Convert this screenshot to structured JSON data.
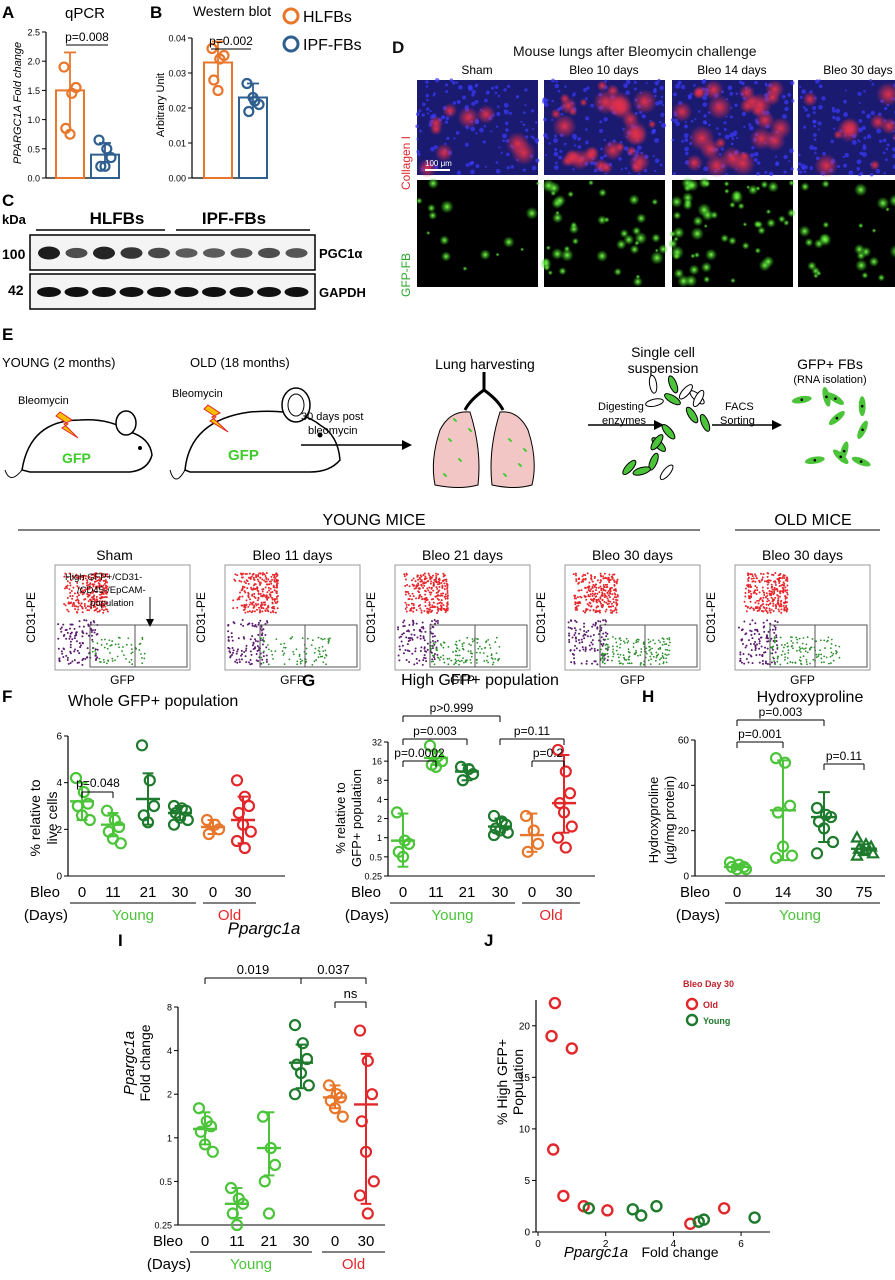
{
  "colors": {
    "orange": "#E8772B",
    "blue": "#2F5F8F",
    "lgreen": "#4CC43A",
    "dgreen": "#1E7A2C",
    "red": "#E2272B",
    "ntitle": "#111"
  },
  "panelA": {
    "letter": "A",
    "title": "qPCR",
    "ylabel": "PPARGC1A Fold change",
    "yticks": [
      "0.0",
      "0.5",
      "1.0",
      "1.5",
      "2.0",
      "2.5"
    ],
    "pval": "p=0.008"
  },
  "panelB": {
    "letter": "B",
    "title": "Western blot",
    "ylabel": "Arbitrary Unit",
    "yticks": [
      "0.00",
      "0.01",
      "0.02",
      "0.03",
      "0.04"
    ],
    "pval": "p=0.002",
    "legend": [
      "HLFBs",
      "IPF-FBs"
    ]
  },
  "panelC": {
    "letter": "C",
    "kda": "kDa",
    "groups": [
      "HLFBs",
      "IPF-FBs"
    ],
    "m1": "100",
    "m2": "42",
    "band1": "PGC1α",
    "band2": "GAPDH"
  },
  "panelD": {
    "letter": "D",
    "title": "Mouse lungs after Bleomycin challenge",
    "cols": [
      "Sham",
      "Bleo 10 days",
      "Bleo 14 days",
      "Bleo 30 days"
    ],
    "row1": "Collagen I",
    "row2": "GFP-FB",
    "scale": "100 μm"
  },
  "panelE": {
    "letter": "E",
    "young": "YOUNG (2 months)",
    "old": "OLD (18 months)",
    "bleo": "Bleomycin",
    "gfp": "GFP",
    "step1": "30 days post",
    "step1b": "bleomycin",
    "harvest": "Lung harvesting",
    "single": "Single cell",
    "suspension": "suspension",
    "digest1": "Digesting",
    "digest2": "enzymes",
    "facs1": "FACS",
    "facs2": "Sorting",
    "gfpfb": "GFP+ FBs",
    "rna": "(RNA isolation)",
    "youngMice": "YOUNG MICE",
    "oldMice": "OLD MICE",
    "flowTitles": [
      "Sham",
      "Bleo 11 days",
      "Bleo 21 days",
      "Bleo 30 days",
      "Bleo 30 days"
    ],
    "flowY": "CD31-PE",
    "flowX": "GFP",
    "gate1": "High GFP+/CD31-",
    "gate2": "/CD45-/EpCAM-",
    "gate3": "population"
  },
  "panelF": {
    "letter": "F",
    "title": "Whole GFP+ population",
    "ylabel1": "% relative to",
    "ylabel2": "live cells",
    "yticks": [
      "0",
      "2",
      "4",
      "6"
    ],
    "pval": "p=0.048",
    "xt": [
      "0",
      "11",
      "21",
      "30",
      "0",
      "30"
    ]
  },
  "panelG": {
    "letter": "G",
    "title": "High GFP+ population",
    "ylabel1": "% relative to",
    "ylabel2": "GFP+ population",
    "yticks": [
      "0.25",
      "0.5",
      "1",
      "2",
      "4",
      "8",
      "16",
      "32"
    ],
    "pvals": [
      "p>0.999",
      "p=0.003",
      "p=0.0002",
      "p=0.11",
      "p=0.2"
    ],
    "xt": [
      "0",
      "11",
      "21",
      "30",
      "0",
      "30"
    ]
  },
  "panelH": {
    "letter": "H",
    "title": "Hydroxyproline",
    "ylabel1": "Hydroxyproline",
    "ylabel2": "(μg/mg protein)",
    "yticks": [
      "0",
      "20",
      "40",
      "60"
    ],
    "pvals": [
      "p=0.003",
      "p=0.001",
      "p=0.11"
    ],
    "xt": [
      "0",
      "14",
      "30",
      "75"
    ]
  },
  "panelI": {
    "letter": "I",
    "title": "Ppargc1a",
    "ylabel1": "Ppargc1a",
    "ylabel2": "Fold change",
    "yticks": [
      "0.25",
      "0.5",
      "1",
      "2",
      "4",
      "8"
    ],
    "pvals": [
      "0.019",
      "0.037",
      "ns"
    ],
    "xt": [
      "0",
      "11",
      "21",
      "30",
      "0",
      "30"
    ]
  },
  "panelJ": {
    "letter": "J",
    "legendTitle": "Bleo Day 30",
    "legend": [
      "Old",
      "Young"
    ],
    "ylabel1": "% High GFP+",
    "ylabel2": "Population",
    "xlabel1": "Ppargc1a",
    "xlabel2": "Fold change",
    "yticks": [
      "0",
      "5",
      "10",
      "15",
      "20"
    ],
    "xticks": [
      "0",
      "2",
      "4",
      "6"
    ]
  },
  "axis": {
    "bleo": "Bleo",
    "days": "(Days)",
    "young": "Young",
    "old": "Old"
  },
  "chart_data": [
    {
      "panel": "A",
      "type": "scatter",
      "title": "qPCR",
      "ylabel": "PPARGC1A Fold change",
      "ylim": [
        0,
        2.5
      ],
      "series": [
        {
          "name": "HLFBs",
          "values": [
            1.9,
            1.45,
            1.55,
            0.85,
            0.75
          ],
          "mean": 1.5,
          "sd": 0.65
        },
        {
          "name": "IPF-FBs",
          "values": [
            0.65,
            0.5,
            0.35,
            0.2,
            0.2
          ],
          "mean": 0.4,
          "sd": 0.2
        }
      ]
    },
    {
      "panel": "B",
      "type": "scatter",
      "title": "Western blot",
      "ylabel": "Arbitrary Unit",
      "ylim": [
        0,
        0.04
      ],
      "series": [
        {
          "name": "HLFBs",
          "values": [
            0.037,
            0.034,
            0.035,
            0.028,
            0.025
          ],
          "mean": 0.033,
          "sd": 0.006
        },
        {
          "name": "IPF-FBs",
          "values": [
            0.027,
            0.022,
            0.021,
            0.019,
            0.023
          ],
          "mean": 0.023,
          "sd": 0.004
        }
      ]
    },
    {
      "panel": "F",
      "type": "scatter",
      "title": "Whole GFP+ population",
      "ylim": [
        0,
        6
      ],
      "categories": [
        "Young 0",
        "Young 11",
        "Young 21",
        "Young 30",
        "Old 0",
        "Old 30"
      ],
      "series": [
        {
          "values": [
            [
              4.2,
              3.6,
              3.1,
              3.0,
              2.6,
              2.4
            ],
            [
              2.8,
              2.4,
              2.1,
              1.9,
              1.6,
              1.4
            ],
            [
              5.6,
              4.1,
              3.0,
              2.6,
              2.3
            ],
            [
              3.0,
              2.9,
              2.8,
              2.7,
              2.5,
              2.4,
              2.2
            ],
            [
              2.4,
              2.2,
              2.0,
              1.8
            ],
            [
              4.1,
              3.4,
              3.0,
              2.7,
              2.2,
              1.9,
              1.5,
              1.2
            ]
          ],
          "means": [
            3.2,
            2.2,
            3.3,
            2.7,
            2.1,
            2.4
          ],
          "sds": [
            0.8,
            0.5,
            1.1,
            0.3,
            0.3,
            1.0
          ]
        }
      ]
    },
    {
      "panel": "G",
      "type": "scatter",
      "title": "High GFP+ population",
      "yscale": "log2",
      "ylim": [
        0.25,
        32
      ],
      "categories": [
        "Young 0",
        "Young 11",
        "Young 21",
        "Young 30",
        "Old 0",
        "Old 30"
      ],
      "series": [
        {
          "values": [
            [
              2.5,
              0.9,
              0.8,
              0.6,
              0.5
            ],
            [
              28,
              19,
              16,
              14,
              13
            ],
            [
              13,
              12,
              10,
              8
            ],
            [
              2.2,
              1.8,
              1.6,
              1.4,
              1.3,
              1.2,
              1.1
            ],
            [
              2.2,
              1.3,
              0.8,
              0.6
            ],
            [
              24,
              11,
              5,
              3.5,
              2.5,
              1.5,
              1.0,
              0.7
            ]
          ],
          "means": [
            0.9,
            18,
            11,
            1.5,
            1.1,
            3.5
          ],
          "sd_lo": [
            0.35,
            14,
            8,
            1.2,
            0.6,
            1.2
          ],
          "sd_hi": [
            2.4,
            23,
            14,
            2.0,
            2.4,
            20
          ]
        }
      ]
    },
    {
      "panel": "H",
      "type": "scatter",
      "title": "Hydroxyproline",
      "ylim": [
        0,
        60
      ],
      "categories": [
        "0",
        "14",
        "30",
        "75"
      ],
      "series": [
        {
          "values": [
            [
              6,
              5,
              4,
              4,
              3,
              3
            ],
            [
              52,
              50,
              31,
              28,
              13,
              9,
              8
            ],
            [
              30,
              27,
              26,
              24,
              21,
              15,
              10
            ],
            [
              17,
              14,
              13,
              12,
              11,
              10,
              9
            ]
          ],
          "means": [
            4,
            29,
            26,
            12
          ],
          "sds": [
            1,
            22,
            11,
            2
          ]
        }
      ]
    },
    {
      "panel": "I",
      "type": "scatter",
      "title": "Ppargc1a",
      "yscale": "log2",
      "ylim": [
        0.25,
        8
      ],
      "categories": [
        "Young 0",
        "Young 11",
        "Young 21",
        "Young 30",
        "Old 0",
        "Old 30"
      ],
      "series": [
        {
          "values": [
            [
              1.6,
              1.3,
              1.2,
              1.1,
              0.9,
              0.8
            ],
            [
              0.45,
              0.38,
              0.35,
              0.3,
              0.25
            ],
            [
              1.4,
              0.85,
              0.65,
              0.5,
              0.3
            ],
            [
              6,
              4.5,
              3.5,
              3.2,
              2.8,
              2.3,
              2.0
            ],
            [
              2.3,
              2.0,
              1.9,
              1.8,
              1.6,
              1.4
            ],
            [
              5.5,
              3.4,
              2.0,
              1.3,
              0.8,
              0.5,
              0.4,
              0.3
            ]
          ],
          "means": [
            1.15,
            0.35,
            0.85,
            3.3,
            1.9,
            1.7
          ],
          "sd_lo": [
            0.9,
            0.28,
            0.55,
            2.2,
            1.6,
            0.35
          ],
          "sd_hi": [
            1.5,
            0.45,
            1.5,
            4.4,
            2.3,
            3.8
          ]
        }
      ]
    },
    {
      "panel": "J",
      "type": "scatter",
      "xlabel": "Ppargc1a Fold change",
      "ylabel": "% High GFP+ Population",
      "xlim": [
        0,
        6.5
      ],
      "ylim": [
        0,
        22.5
      ],
      "series": [
        {
          "name": "Old",
          "points": [
            [
              0.4,
              19.0
            ],
            [
              0.5,
              22.2
            ],
            [
              1.0,
              17.8
            ],
            [
              0.45,
              8.0
            ],
            [
              0.75,
              3.5
            ],
            [
              1.35,
              2.5
            ],
            [
              2.05,
              2.1
            ],
            [
              4.5,
              0.8
            ],
            [
              5.5,
              2.3
            ]
          ]
        },
        {
          "name": "Young",
          "points": [
            [
              1.5,
              2.3
            ],
            [
              2.8,
              2.2
            ],
            [
              3.05,
              1.6
            ],
            [
              3.5,
              2.5
            ],
            [
              4.75,
              1.0
            ],
            [
              4.9,
              1.2
            ],
            [
              6.4,
              1.4
            ]
          ]
        }
      ]
    }
  ]
}
